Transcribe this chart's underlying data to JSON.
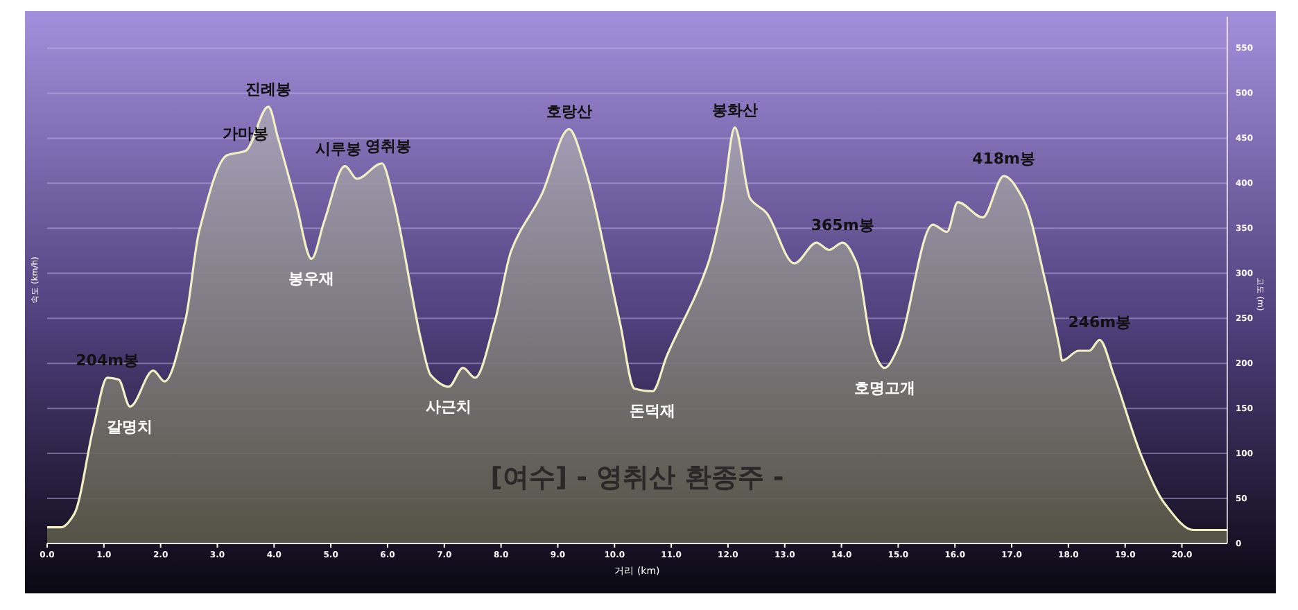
{
  "chart_data": {
    "type": "area",
    "xlabel": "거리 (km)",
    "ylabel": "고도 (m)",
    "x": [
      0,
      0.25,
      0.48,
      0.82,
      1.06,
      1.26,
      1.46,
      1.87,
      2.07,
      2.44,
      2.68,
      3.17,
      3.5,
      3.9,
      4.07,
      4.39,
      4.66,
      4.88,
      5.25,
      5.46,
      5.9,
      6.1,
      6.6,
      6.76,
      7.08,
      7.33,
      7.54,
      7.9,
      8.18,
      8.72,
      9.2,
      9.45,
      10.1,
      10.35,
      10.67,
      10.92,
      11.65,
      11.9,
      12.12,
      12.39,
      12.68,
      13.17,
      13.56,
      13.78,
      14.02,
      14.27,
      14.54,
      14.76,
      15.0,
      15.61,
      15.86,
      16.05,
      16.49,
      16.86,
      17.22,
      17.59,
      17.84,
      17.89,
      18.18,
      18.37,
      18.55,
      18.8,
      19.3,
      19.7,
      20.2,
      20.8
    ],
    "series": [
      {
        "color": "#f3efc4",
        "values": [
          18,
          18,
          33,
          130,
          184,
          182,
          152,
          192,
          180,
          249,
          347,
          431,
          436,
          485,
          450,
          377,
          316,
          357,
          419,
          405,
          422,
          383,
          223,
          187,
          174,
          195,
          184,
          249,
          325,
          388,
          460,
          423,
          244,
          172,
          169,
          208,
          311,
          377,
          462,
          383,
          367,
          311,
          334,
          326,
          334,
          311,
          219,
          195,
          218,
          354,
          346,
          379,
          362,
          408,
          380,
          292,
          219,
          203,
          214,
          214,
          226,
          187,
          95,
          44,
          15,
          15
        ]
      }
    ],
    "xlim": [
      0,
      20.8
    ],
    "xticks": [
      {
        "value": 0,
        "label": "0.0"
      },
      {
        "value": 1,
        "label": "1.0"
      },
      {
        "value": 2,
        "label": "2.0"
      },
      {
        "value": 3,
        "label": "3.0"
      },
      {
        "value": 4,
        "label": "4.0"
      },
      {
        "value": 5,
        "label": "5.0"
      },
      {
        "value": 6,
        "label": "6.0"
      },
      {
        "value": 7,
        "label": "7.0"
      },
      {
        "value": 8,
        "label": "8.0"
      },
      {
        "value": 9,
        "label": "9.0"
      },
      {
        "value": 10,
        "label": "10.0"
      },
      {
        "value": 11,
        "label": "11.0"
      },
      {
        "value": 12,
        "label": "12.0"
      },
      {
        "value": 13,
        "label": "13.0"
      },
      {
        "value": 14,
        "label": "14.0"
      },
      {
        "value": 15,
        "label": "15.0"
      },
      {
        "value": 16,
        "label": "16.0"
      },
      {
        "value": 17,
        "label": "17.0"
      },
      {
        "value": 18,
        "label": "18.0"
      },
      {
        "value": 19,
        "label": "19.0"
      },
      {
        "value": 20,
        "label": "20.0"
      }
    ],
    "ylim": [
      0,
      585
    ],
    "yticks": [
      0,
      50,
      100,
      150,
      200,
      250,
      300,
      350,
      400,
      450,
      500,
      550
    ],
    "grid": "y",
    "annotations": [
      {
        "text": "204m봉",
        "x": 1.06,
        "y": 184
      },
      {
        "text": "갈명치",
        "x": 1.46,
        "y": 152
      },
      {
        "text": "가마봉",
        "x": 3.5,
        "y": 436
      },
      {
        "text": "진례봉",
        "x": 3.9,
        "y": 485
      },
      {
        "text": "봉우재",
        "x": 4.66,
        "y": 316
      },
      {
        "text": "시루봉",
        "x": 5.25,
        "y": 419
      },
      {
        "text": "영취봉",
        "x": 5.9,
        "y": 422
      },
      {
        "text": "사근치",
        "x": 7.08,
        "y": 174
      },
      {
        "text": "호랑산",
        "x": 9.2,
        "y": 460
      },
      {
        "text": "돈덕재",
        "x": 10.67,
        "y": 169
      },
      {
        "text": "봉화산",
        "x": 12.12,
        "y": 462
      },
      {
        "text": "365m봉",
        "x": 14.02,
        "y": 334
      },
      {
        "text": "호명고개",
        "x": 14.76,
        "y": 195
      },
      {
        "text": "418m봉",
        "x": 16.86,
        "y": 408
      },
      {
        "text": "246m봉",
        "x": 18.55,
        "y": 226
      },
      "[여수] - 영취산 환종주 -",
      "속도 (km/h)"
    ]
  }
}
